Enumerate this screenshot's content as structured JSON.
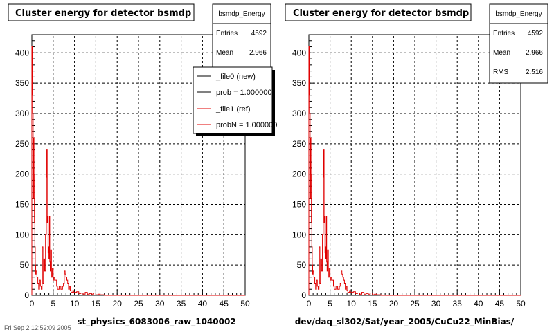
{
  "panels": [
    {
      "title": "Cluster energy for detector bsmdp",
      "xlabel": "st_physics_6083006_raw_1040002",
      "stats": {
        "name": "bsmdp_Energy",
        "rows": [
          {
            "label": "Entries",
            "value": "4592"
          },
          {
            "label": "Mean",
            "value": "2.966"
          }
        ]
      },
      "legend": [
        {
          "text": "_file0 (new)",
          "color": "#000000"
        },
        {
          "text": "prob = 1.000000",
          "color": "#000000"
        },
        {
          "text": "_file1 (ref)",
          "color": "#e00000"
        },
        {
          "text": "probN = 1.000000",
          "color": "#e00000"
        }
      ]
    },
    {
      "title": "Cluster energy for detector bsmdp",
      "xlabel": "dev/daq_sl302/Sat/year_2005/CuCu22_MinBias/",
      "stats": {
        "name": "bsmdp_Energy",
        "rows": [
          {
            "label": "Entries",
            "value": "4592"
          },
          {
            "label": "Mean",
            "value": "2.966"
          },
          {
            "label": "RMS",
            "value": "2.516"
          }
        ]
      },
      "legend": []
    }
  ],
  "footer": "Fri Sep  2 12:52:09 2005",
  "chart_data": [
    {
      "type": "histogram",
      "title": "Cluster energy for detector bsmdp",
      "xlabel": "st_physics_6083006_raw_1040002",
      "xlim": [
        0,
        50
      ],
      "ylim": [
        0,
        430
      ],
      "xticks": [
        0,
        5,
        10,
        15,
        20,
        25,
        30,
        35,
        40,
        45,
        50
      ],
      "yticks": [
        0,
        50,
        100,
        150,
        200,
        250,
        300,
        350,
        400
      ],
      "grid": true,
      "bin_width": 0.1,
      "series": [
        {
          "color": "#e00000",
          "x": [
            0.0,
            0.1,
            0.2,
            0.3,
            0.4,
            0.5,
            0.6,
            0.7,
            0.8,
            0.9,
            1.0,
            1.2,
            1.4,
            1.6,
            1.8,
            2.0,
            2.2,
            2.4,
            2.6,
            2.8,
            3.0,
            3.2,
            3.4,
            3.5,
            3.6,
            3.7,
            3.8,
            3.9,
            4.0,
            4.1,
            4.2,
            4.3,
            4.4,
            4.6,
            4.8,
            5.0,
            5.2,
            5.4,
            5.6,
            5.8,
            6.0,
            6.2,
            6.4,
            6.6,
            6.8,
            7.0,
            7.2,
            7.4,
            7.6,
            7.8,
            8.0,
            8.2,
            8.4,
            8.6,
            8.8,
            9.0,
            9.2,
            9.4,
            9.6,
            9.8,
            10.0,
            10.5,
            11.0,
            11.5,
            12.0,
            12.5,
            13.0,
            13.5,
            14.0,
            14.5,
            15.0,
            15.5,
            16.0,
            17.0
          ],
          "y": [
            410,
            330,
            300,
            160,
            260,
            200,
            120,
            80,
            50,
            35,
            40,
            30,
            20,
            10,
            25,
            15,
            10,
            80,
            20,
            60,
            40,
            100,
            195,
            240,
            120,
            130,
            70,
            80,
            60,
            130,
            55,
            40,
            75,
            30,
            45,
            25,
            30,
            25,
            25,
            15,
            10,
            10,
            15,
            15,
            10,
            10,
            15,
            20,
            40,
            35,
            30,
            25,
            20,
            10,
            15,
            8,
            5,
            5,
            8,
            4,
            5,
            6,
            3,
            4,
            2,
            5,
            2,
            3,
            2,
            4,
            1,
            2,
            1,
            0
          ]
        }
      ]
    },
    {
      "type": "histogram",
      "title": "Cluster energy for detector bsmdp",
      "xlabel": "dev/daq_sl302/Sat/year_2005/CuCu22_MinBias/",
      "xlim": [
        0,
        50
      ],
      "ylim": [
        0,
        430
      ],
      "xticks": [
        0,
        5,
        10,
        15,
        20,
        25,
        30,
        35,
        40,
        45,
        50
      ],
      "yticks": [
        0,
        50,
        100,
        150,
        200,
        250,
        300,
        350,
        400
      ],
      "grid": true,
      "bin_width": 0.1,
      "series": [
        {
          "color": "#e00000",
          "x": [
            0.0,
            0.1,
            0.2,
            0.3,
            0.4,
            0.5,
            0.6,
            0.7,
            0.8,
            0.9,
            1.0,
            1.2,
            1.4,
            1.6,
            1.8,
            2.0,
            2.2,
            2.4,
            2.6,
            2.8,
            3.0,
            3.2,
            3.4,
            3.5,
            3.6,
            3.7,
            3.8,
            3.9,
            4.0,
            4.1,
            4.2,
            4.3,
            4.4,
            4.6,
            4.8,
            5.0,
            5.2,
            5.4,
            5.6,
            5.8,
            6.0,
            6.2,
            6.4,
            6.6,
            6.8,
            7.0,
            7.2,
            7.4,
            7.6,
            7.8,
            8.0,
            8.2,
            8.4,
            8.6,
            8.8,
            9.0,
            9.2,
            9.4,
            9.6,
            9.8,
            10.0,
            10.5,
            11.0,
            11.5,
            12.0,
            12.5,
            13.0,
            13.5,
            14.0,
            14.5,
            15.0,
            15.5,
            16.0,
            17.0
          ],
          "y": [
            410,
            330,
            300,
            160,
            260,
            200,
            120,
            80,
            50,
            35,
            40,
            30,
            20,
            10,
            25,
            15,
            10,
            80,
            20,
            60,
            40,
            100,
            195,
            240,
            120,
            130,
            70,
            80,
            60,
            130,
            55,
            40,
            75,
            30,
            45,
            25,
            30,
            25,
            25,
            15,
            10,
            10,
            15,
            15,
            10,
            10,
            15,
            20,
            40,
            35,
            30,
            25,
            20,
            10,
            15,
            8,
            5,
            5,
            8,
            4,
            5,
            6,
            3,
            4,
            2,
            5,
            2,
            3,
            2,
            4,
            1,
            2,
            1,
            0
          ]
        }
      ]
    }
  ]
}
